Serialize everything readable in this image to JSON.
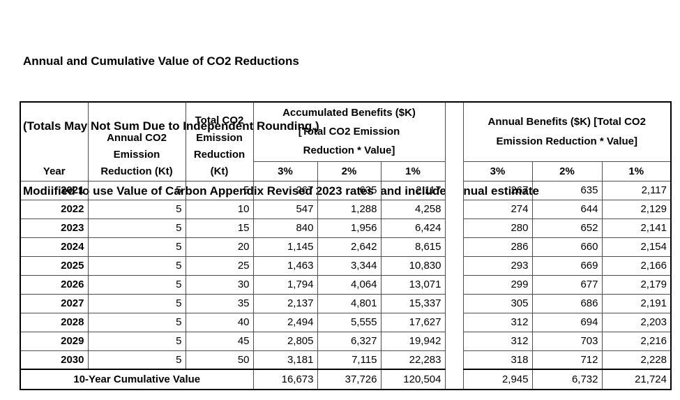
{
  "titles": {
    "line1": "Annual and Cumulative Value of CO2 Reductions",
    "line2": "(Totals May Not Sum Due to Independent Rounding.)",
    "line3": "Modiified to use Value of Carbon Appendix Revised 2023 rates  and include annual estimate"
  },
  "table": {
    "headers": {
      "year": "Year",
      "annual_reduction": "Annual CO2\nEmission\nReduction (Kt)",
      "total_reduction": "Total CO2\nEmission\nReduction\n(Kt)",
      "accumulated_group": "Accumulated  Benefits ($K)\n[Total CO2 Emission\nReduction * Value]",
      "annual_group": "Annual Benefits ($K) [Total CO2\nEmission Reduction * Value]",
      "rates": [
        "3%",
        "2%",
        "1%"
      ]
    },
    "rows": [
      {
        "year": "2021",
        "annual": "5",
        "total": "5",
        "acc": [
          "267",
          "635",
          "2,117"
        ],
        "ann": [
          "267",
          "635",
          "2,117"
        ]
      },
      {
        "year": "2022",
        "annual": "5",
        "total": "10",
        "acc": [
          "547",
          "1,288",
          "4,258"
        ],
        "ann": [
          "274",
          "644",
          "2,129"
        ]
      },
      {
        "year": "2023",
        "annual": "5",
        "total": "15",
        "acc": [
          "840",
          "1,956",
          "6,424"
        ],
        "ann": [
          "280",
          "652",
          "2,141"
        ]
      },
      {
        "year": "2024",
        "annual": "5",
        "total": "20",
        "acc": [
          "1,145",
          "2,642",
          "8,615"
        ],
        "ann": [
          "286",
          "660",
          "2,154"
        ]
      },
      {
        "year": "2025",
        "annual": "5",
        "total": "25",
        "acc": [
          "1,463",
          "3,344",
          "10,830"
        ],
        "ann": [
          "293",
          "669",
          "2,166"
        ]
      },
      {
        "year": "2026",
        "annual": "5",
        "total": "30",
        "acc": [
          "1,794",
          "4,064",
          "13,071"
        ],
        "ann": [
          "299",
          "677",
          "2,179"
        ]
      },
      {
        "year": "2027",
        "annual": "5",
        "total": "35",
        "acc": [
          "2,137",
          "4,801",
          "15,337"
        ],
        "ann": [
          "305",
          "686",
          "2,191"
        ]
      },
      {
        "year": "2028",
        "annual": "5",
        "total": "40",
        "acc": [
          "2,494",
          "5,555",
          "17,627"
        ],
        "ann": [
          "312",
          "694",
          "2,203"
        ]
      },
      {
        "year": "2029",
        "annual": "5",
        "total": "45",
        "acc": [
          "2,805",
          "6,327",
          "19,942"
        ],
        "ann": [
          "312",
          "703",
          "2,216"
        ]
      },
      {
        "year": "2030",
        "annual": "5",
        "total": "50",
        "acc": [
          "3,181",
          "7,115",
          "22,283"
        ],
        "ann": [
          "318",
          "712",
          "2,228"
        ]
      }
    ],
    "total_row": {
      "label": "10-Year Cumulative Value",
      "acc": [
        "16,673",
        "37,726",
        "120,504"
      ],
      "ann": [
        "2,945",
        "6,732",
        "21,724"
      ]
    }
  }
}
